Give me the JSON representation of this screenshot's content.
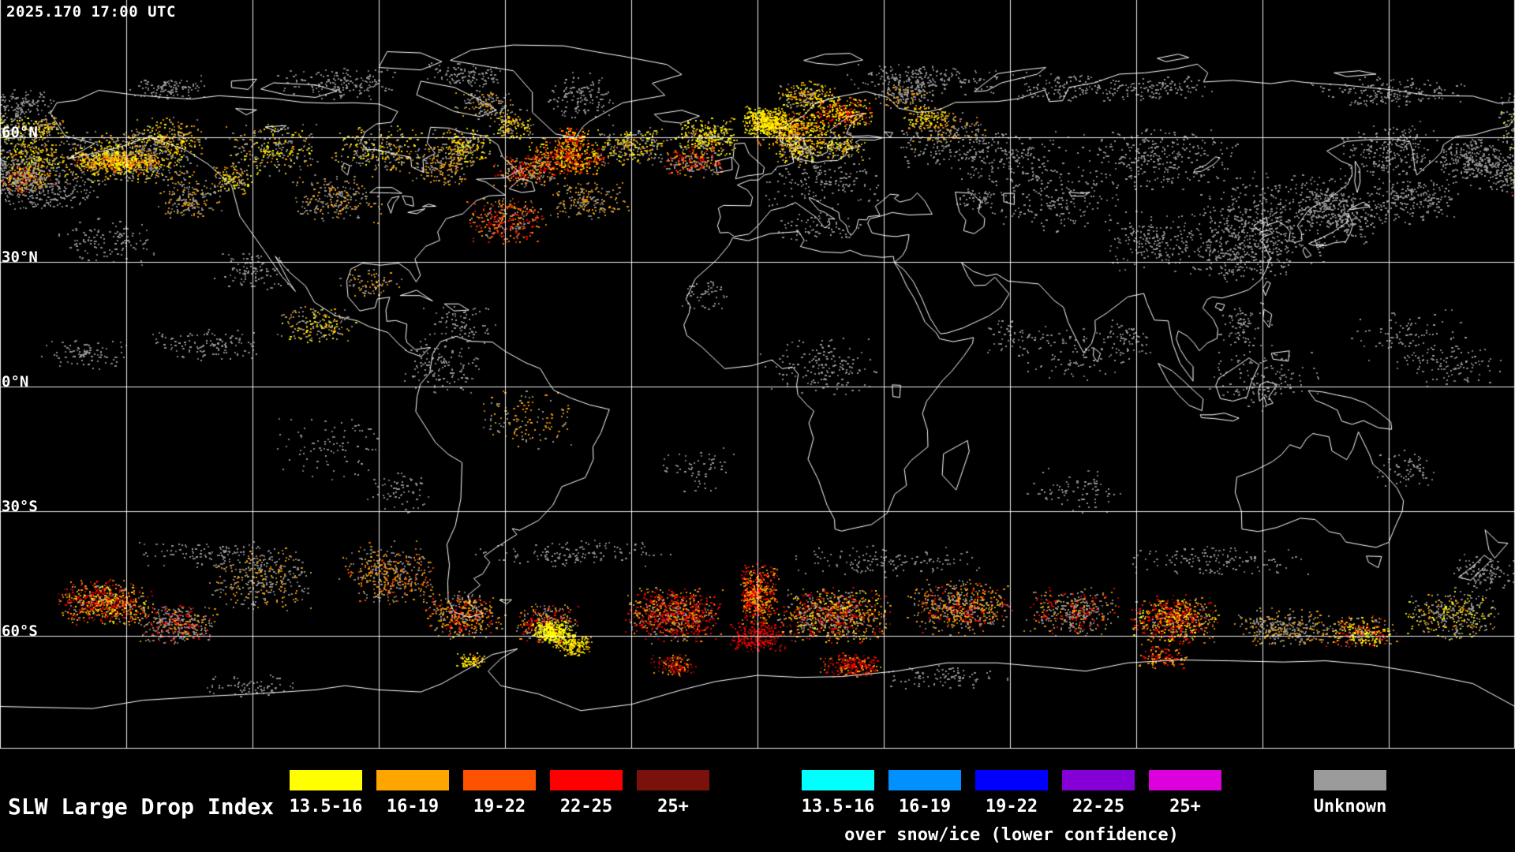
{
  "header": {
    "timestamp": "2025.170 17:00 UTC"
  },
  "map": {
    "projection": "equirectangular",
    "lat_labels": [
      {
        "label": "60°N",
        "lat": 60
      },
      {
        "label": "30°N",
        "lat": 30
      },
      {
        "label": "0°N",
        "lat": 0
      },
      {
        "label": "30°S",
        "lat": -30
      },
      {
        "label": "60°S",
        "lat": -60
      }
    ],
    "grid": {
      "lon_step_deg": 30,
      "lat_step_deg": 30
    }
  },
  "legend": {
    "title": "SLW Large Drop Index",
    "groups": [
      {
        "name": "standard",
        "entries": [
          {
            "label": "13.5-16",
            "color": "#ffff00"
          },
          {
            "label": "16-19",
            "color": "#ffa500"
          },
          {
            "label": "19-22",
            "color": "#ff5200"
          },
          {
            "label": "22-25",
            "color": "#ff0000"
          },
          {
            "label": "25+",
            "color": "#7a120b"
          }
        ]
      },
      {
        "name": "snow-ice",
        "caption": "over snow/ice (lower confidence)",
        "entries": [
          {
            "label": "13.5-16",
            "color": "#00ffff"
          },
          {
            "label": "16-19",
            "color": "#0090ff"
          },
          {
            "label": "19-22",
            "color": "#0000ff"
          },
          {
            "label": "22-25",
            "color": "#8400d6"
          },
          {
            "label": "25+",
            "color": "#dc00dc"
          }
        ]
      }
    ],
    "unknown": {
      "label": "Unknown",
      "color": "#9b9b9b"
    }
  }
}
